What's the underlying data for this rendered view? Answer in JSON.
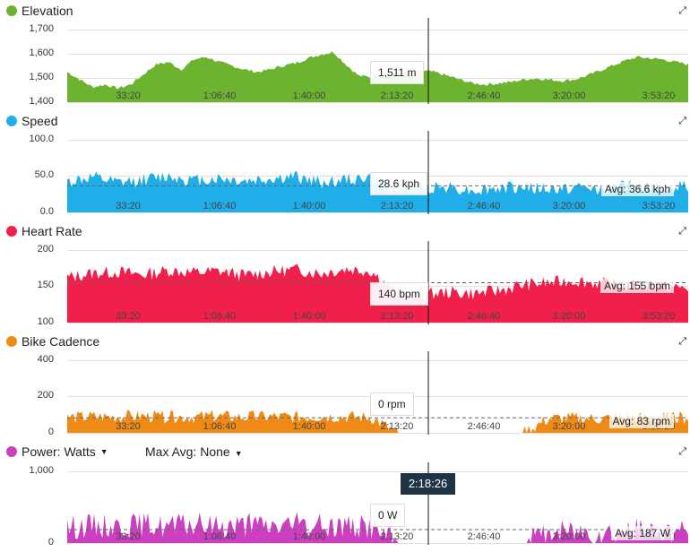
{
  "cursor_time": "2:18:26",
  "xtick_labels": [
    "33:20",
    "1:06:40",
    "1:40:00",
    "2:13:20",
    "2:46:40",
    "3:20:00",
    "3:53:20"
  ],
  "panels": [
    {
      "key": "elevation",
      "title": "Elevation",
      "color": "#6cb330",
      "yticks": [
        "1,700",
        "1,600",
        "1,500",
        "1,400"
      ],
      "tooltip": "1,511 m",
      "avg": ""
    },
    {
      "key": "speed",
      "title": "Speed",
      "color": "#1faee8",
      "yticks": [
        "100.0",
        "50.0",
        "0.0"
      ],
      "tooltip": "28.6 kph",
      "avg": "Avg: 36.6 kph"
    },
    {
      "key": "heart_rate",
      "title": "Heart Rate",
      "color": "#f0204a",
      "yticks": [
        "200",
        "150",
        "100"
      ],
      "tooltip": "140 bpm",
      "avg": "Avg: 155 bpm"
    },
    {
      "key": "cadence",
      "title": "Bike Cadence",
      "color": "#f08a16",
      "yticks": [
        "400",
        "200",
        "0"
      ],
      "tooltip": "0 rpm",
      "avg": "Avg: 83 rpm"
    },
    {
      "key": "power",
      "title": "Power: Watts",
      "color": "#cc3fc0",
      "yticks": [
        "1,000",
        "0"
      ],
      "tooltip": "0 W",
      "avg": "Avg: 187 W",
      "max_avg_label": "Max Avg: None"
    }
  ],
  "chart_data": [
    {
      "type": "area",
      "title": "Elevation",
      "x_unit": "time",
      "ylim": [
        1400,
        1700
      ],
      "x": [
        0,
        300,
        600,
        900,
        1200,
        1500,
        1800,
        2100,
        2400,
        2700,
        3000,
        3300,
        3600,
        3900,
        4200,
        4500,
        4800,
        5100,
        5400,
        5700,
        6000,
        6300,
        6600,
        6900,
        7200,
        7500,
        7800,
        8100,
        8400,
        8700,
        9000,
        9300,
        9600,
        9900,
        10200,
        10500,
        10800,
        11100,
        11400,
        11700,
        12000,
        12300,
        12600,
        12900,
        13200,
        13500,
        13800,
        14100,
        14400,
        14700
      ],
      "values": [
        1520,
        1490,
        1460,
        1470,
        1455,
        1470,
        1510,
        1550,
        1560,
        1530,
        1570,
        1580,
        1560,
        1545,
        1530,
        1520,
        1530,
        1545,
        1555,
        1575,
        1590,
        1600,
        1550,
        1505,
        1500,
        1510,
        1520,
        1511,
        1525,
        1520,
        1505,
        1490,
        1475,
        1470,
        1475,
        1480,
        1490,
        1495,
        1490,
        1485,
        1490,
        1505,
        1525,
        1545,
        1565,
        1580,
        1575,
        1570,
        1560,
        1550
      ]
    },
    {
      "type": "area",
      "title": "Speed",
      "ylim": [
        0,
        100
      ],
      "average": 36.6,
      "x": [
        0,
        600,
        1200,
        1800,
        2400,
        3000,
        3600,
        4200,
        4800,
        5400,
        6000,
        6600,
        7200,
        7800,
        8400,
        9000,
        9600,
        10200,
        10800,
        11400,
        12000,
        12600,
        13200,
        13800,
        14400
      ],
      "values": [
        42,
        48,
        40,
        45,
        50,
        44,
        47,
        43,
        46,
        49,
        41,
        45,
        48,
        28.6,
        34,
        36,
        30,
        33,
        35,
        31,
        34,
        32,
        36,
        33,
        35
      ]
    },
    {
      "type": "area",
      "title": "Heart Rate",
      "ylim": [
        100,
        200
      ],
      "average": 155,
      "x": [
        0,
        600,
        1200,
        1800,
        2400,
        3000,
        3600,
        4200,
        4800,
        5400,
        6000,
        6600,
        7200,
        7800,
        8400,
        9000,
        9600,
        10200,
        10800,
        11400,
        12000,
        12600,
        13200,
        13800,
        14400
      ],
      "values": [
        162,
        168,
        170,
        166,
        172,
        169,
        171,
        165,
        170,
        173,
        168,
        174,
        171,
        140,
        138,
        142,
        140,
        144,
        152,
        155,
        158,
        154,
        150,
        153,
        148
      ]
    },
    {
      "type": "area",
      "title": "Bike Cadence",
      "ylim": [
        0,
        400
      ],
      "average": 83,
      "x": [
        0,
        600,
        1200,
        1800,
        2400,
        3000,
        3600,
        4200,
        4800,
        5400,
        6000,
        6600,
        7200,
        7800,
        8400,
        9000,
        9600,
        10200,
        10800,
        11400,
        12000,
        12600,
        13200,
        13800,
        14400
      ],
      "values": [
        85,
        90,
        88,
        92,
        86,
        89,
        91,
        87,
        90,
        88,
        92,
        89,
        86,
        0,
        0,
        0,
        0,
        0,
        0,
        80,
        82,
        79,
        84,
        81,
        83
      ]
    },
    {
      "type": "area",
      "title": "Power: Watts",
      "ylim": [
        0,
        1000
      ],
      "average": 187,
      "x": [
        0,
        600,
        1200,
        1800,
        2400,
        3000,
        3600,
        4200,
        4800,
        5400,
        6000,
        6600,
        7200,
        7800,
        8400,
        9000,
        9600,
        10200,
        10800,
        11400,
        12000,
        12600,
        13200,
        13800,
        14400
      ],
      "values": [
        220,
        250,
        240,
        260,
        230,
        255,
        245,
        250,
        240,
        260,
        235,
        250,
        230,
        0,
        0,
        0,
        0,
        0,
        0,
        150,
        170,
        160,
        180,
        165,
        175
      ]
    }
  ]
}
